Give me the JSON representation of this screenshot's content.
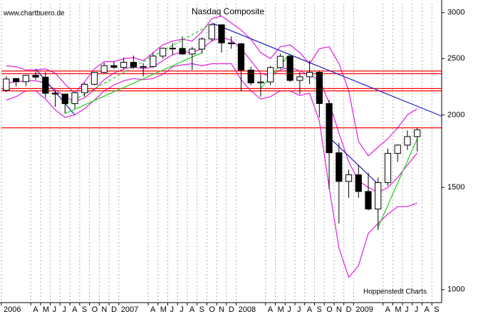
{
  "chart_data": {
    "type": "candlestick",
    "title": "Nasdaq Composite",
    "source": "www.chartbuero.de",
    "credit": "Hoppenstedt Charts",
    "log_scale": true,
    "grid": true,
    "up_color": "#ffffff",
    "down_color": "#000000",
    "xlim": [
      "2006-01",
      "2009-09"
    ],
    "xticks": [
      {
        "value": "2006-01",
        "label": "2006"
      },
      {
        "value": "2006-04",
        "label": "A"
      },
      {
        "value": "2006-05",
        "label": "M"
      },
      {
        "value": "2006-06",
        "label": "J"
      },
      {
        "value": "2006-07",
        "label": "J"
      },
      {
        "value": "2006-08",
        "label": "A"
      },
      {
        "value": "2006-09",
        "label": "S"
      },
      {
        "value": "2006-10",
        "label": "O"
      },
      {
        "value": "2006-11",
        "label": "N"
      },
      {
        "value": "2006-12",
        "label": "D"
      },
      {
        "value": "2007-01",
        "label": "2007"
      },
      {
        "value": "2007-04",
        "label": "A"
      },
      {
        "value": "2007-05",
        "label": "M"
      },
      {
        "value": "2007-06",
        "label": "J"
      },
      {
        "value": "2007-07",
        "label": "J"
      },
      {
        "value": "2007-08",
        "label": "A"
      },
      {
        "value": "2007-09",
        "label": "S"
      },
      {
        "value": "2007-10",
        "label": "O"
      },
      {
        "value": "2007-11",
        "label": "N"
      },
      {
        "value": "2007-12",
        "label": "D"
      },
      {
        "value": "2008-01",
        "label": "2008"
      },
      {
        "value": "2008-04",
        "label": "A"
      },
      {
        "value": "2008-05",
        "label": "M"
      },
      {
        "value": "2008-06",
        "label": "J"
      },
      {
        "value": "2008-07",
        "label": "J"
      },
      {
        "value": "2008-08",
        "label": "A"
      },
      {
        "value": "2008-09",
        "label": "S"
      },
      {
        "value": "2008-10",
        "label": "O"
      },
      {
        "value": "2008-11",
        "label": "N"
      },
      {
        "value": "2008-12",
        "label": "D"
      },
      {
        "value": "2009-01",
        "label": "2009"
      },
      {
        "value": "2009-04",
        "label": "A"
      },
      {
        "value": "2009-05",
        "label": "M"
      },
      {
        "value": "2009-06",
        "label": "J"
      },
      {
        "value": "2009-07",
        "label": "J"
      },
      {
        "value": "2009-08",
        "label": "A"
      },
      {
        "value": "2009-09",
        "label": "S"
      }
    ],
    "ylim": [
      950,
      3110
    ],
    "yticks": [
      1000,
      1500,
      2000,
      2500,
      3000
    ],
    "x": [
      "2006-01",
      "2006-02",
      "2006-03",
      "2006-04",
      "2006-05",
      "2006-06",
      "2006-07",
      "2006-08",
      "2006-09",
      "2006-10",
      "2006-11",
      "2006-12",
      "2007-01",
      "2007-02",
      "2007-03",
      "2007-04",
      "2007-05",
      "2007-06",
      "2007-07",
      "2007-08",
      "2007-09",
      "2007-10",
      "2007-11",
      "2007-12",
      "2008-01",
      "2008-02",
      "2008-03",
      "2008-04",
      "2008-05",
      "2008-06",
      "2008-07",
      "2008-08",
      "2008-09",
      "2008-10",
      "2008-11",
      "2008-12",
      "2009-01",
      "2009-02",
      "2009-03",
      "2009-04",
      "2009-05",
      "2009-06",
      "2009-07"
    ],
    "open": [
      2205,
      2310,
      2281,
      2340,
      2323,
      2180,
      2172,
      2091,
      2184,
      2258,
      2367,
      2432,
      2415,
      2464,
      2416,
      2422,
      2525,
      2605,
      2603,
      2546,
      2596,
      2702,
      2859,
      2661,
      2652,
      2389,
      2271,
      2279,
      2413,
      2523,
      2293,
      2326,
      2368,
      2092,
      1721,
      1536,
      1577,
      1476,
      1377,
      1529,
      1717,
      1774,
      1835
    ],
    "high": [
      2333,
      2315,
      2345,
      2375,
      2370,
      2200,
      2175,
      2190,
      2270,
      2370,
      2460,
      2470,
      2510,
      2530,
      2455,
      2560,
      2610,
      2660,
      2730,
      2620,
      2720,
      2861,
      2860,
      2730,
      2660,
      2420,
      2350,
      2430,
      2550,
      2540,
      2370,
      2480,
      2380,
      2120,
      1790,
      1610,
      1640,
      1590,
      1560,
      1750,
      1780,
      1880,
      1900
    ],
    "low": [
      2189,
      2240,
      2242,
      2300,
      2140,
      2065,
      2012,
      2050,
      2150,
      2250,
      2360,
      2400,
      2395,
      2400,
      2330,
      2410,
      2500,
      2540,
      2540,
      2390,
      2550,
      2680,
      2560,
      2600,
      2200,
      2250,
      2150,
      2250,
      2400,
      2280,
      2170,
      2260,
      1980,
      1490,
      1300,
      1440,
      1440,
      1370,
      1266,
      1510,
      1660,
      1740,
      1730
    ],
    "close": [
      2306,
      2281,
      2340,
      2323,
      2179,
      2172,
      2091,
      2184,
      2258,
      2367,
      2432,
      2415,
      2464,
      2416,
      2422,
      2525,
      2605,
      2603,
      2546,
      2596,
      2702,
      2859,
      2661,
      2652,
      2389,
      2271,
      2279,
      2413,
      2523,
      2293,
      2326,
      2368,
      2092,
      1721,
      1536,
      1577,
      1476,
      1377,
      1529,
      1717,
      1774,
      1835,
      1885
    ],
    "bands": [
      {
        "color": "#e020e0",
        "values": [
          2430,
          2420,
          2390,
          2390,
          2400,
          2360,
          2260,
          2180,
          2280,
          2400,
          2470,
          2470,
          2500,
          2510,
          2480,
          2560,
          2640,
          2680,
          2700,
          2680,
          2780,
          2930,
          2960,
          2880,
          2800,
          2700,
          2560,
          2500,
          2620,
          2640,
          2560,
          2450,
          2600,
          2620,
          2450,
          2200,
          1800,
          1700,
          1760,
          1820,
          1900,
          2000,
          2050
        ]
      },
      {
        "color": "#e020e0",
        "values": [
          2270,
          2280,
          2290,
          2290,
          2270,
          2210,
          2150,
          2110,
          2140,
          2210,
          2300,
          2360,
          2400,
          2420,
          2400,
          2420,
          2480,
          2540,
          2570,
          2560,
          2600,
          2680,
          2720,
          2690,
          2600,
          2480,
          2360,
          2330,
          2390,
          2420,
          2380,
          2340,
          2300,
          2100,
          1860,
          1660,
          1540,
          1500,
          1470,
          1500,
          1560,
          1640,
          1720
        ]
      },
      {
        "color": "#e020e0",
        "values": [
          2120,
          2150,
          2200,
          2200,
          2130,
          2040,
          1980,
          2000,
          2050,
          2120,
          2200,
          2250,
          2290,
          2310,
          2300,
          2310,
          2350,
          2420,
          2440,
          2450,
          2430,
          2450,
          2450,
          2450,
          2300,
          2200,
          2130,
          2150,
          2200,
          2200,
          2160,
          2180,
          1950,
          1500,
          1180,
          1050,
          1100,
          1250,
          1300,
          1350,
          1390,
          1390,
          1410
        ]
      }
    ],
    "lines": [
      {
        "color": "#ff0000",
        "x": [
          "2006-01",
          "2009-09"
        ],
        "y": [
          2380,
          2380
        ]
      },
      {
        "color": "#ff0000",
        "x": [
          "2006-01",
          "2009-09"
        ],
        "y": [
          2355,
          2355
        ]
      },
      {
        "color": "#ff0000",
        "x": [
          "2006-01",
          "2009-09"
        ],
        "y": [
          2220,
          2220
        ]
      },
      {
        "color": "#ff0000",
        "x": [
          "2006-01",
          "2009-09"
        ],
        "y": [
          2200,
          2200
        ]
      },
      {
        "color": "#ff0000",
        "x": [
          "2006-01",
          "2009-09"
        ],
        "y": [
          1900,
          1900
        ]
      },
      {
        "color": "#2020c0",
        "x": [
          "2007-10",
          "2009-09"
        ],
        "y": [
          2880,
          1990
        ]
      },
      {
        "color": "#2020c0",
        "x": [
          "2006-04",
          "2006-08"
        ],
        "y": [
          2400,
          2000
        ]
      },
      {
        "color": "#2020c0",
        "x": [
          "2008-10",
          "2009-03"
        ],
        "y": [
          1830,
          1520
        ]
      },
      {
        "color": "#20d020",
        "x": [
          "2006-07",
          "2007-09"
        ],
        "y": [
          2010,
          2560
        ]
      },
      {
        "color": "#20d020",
        "x": [
          "2006-07",
          "2007-10"
        ],
        "y": [
          2080,
          2870
        ],
        "dash": true
      },
      {
        "color": "#20d020",
        "x": [
          "2008-03",
          "2008-06"
        ],
        "y": [
          2220,
          2550
        ]
      },
      {
        "color": "#20d020",
        "x": [
          "2009-03",
          "2009-07"
        ],
        "y": [
          1280,
          1820
        ]
      }
    ]
  }
}
